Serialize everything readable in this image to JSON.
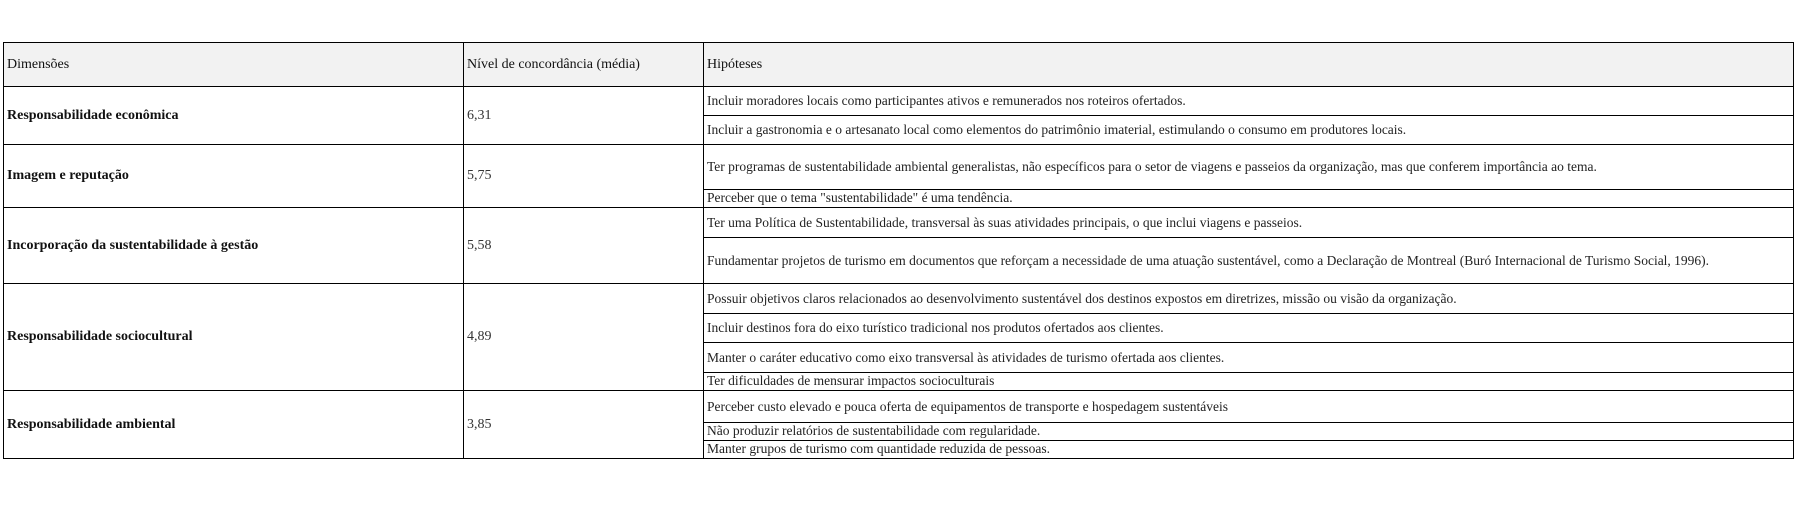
{
  "table": {
    "headers": [
      "Dimensões",
      "Nível de concordância (média)",
      "Hipóteses"
    ],
    "rows": [
      {
        "dimension": "Responsabilidade econômica",
        "mean": "6,31",
        "hypotheses": [
          "Incluir moradores locais como participantes ativos e remunerados nos roteiros ofertados.",
          "Incluir a gastronomia e o artesanato local como elementos do patrimônio imaterial, estimulando o consumo em produtores locais."
        ]
      },
      {
        "dimension": "Imagem e reputação",
        "mean": "5,75",
        "hypotheses": [
          "Ter programas de sustentabilidade ambiental generalistas, não específicos para o setor de viagens e passeios da organização, mas que conferem importância ao tema.",
          "Perceber que o tema \"sustentabilidade\" é uma tendência."
        ]
      },
      {
        "dimension": "Incorporação da sustentabilidade à gestão",
        "mean": "5,58",
        "hypotheses": [
          "Ter uma Política de Sustentabilidade, transversal às suas atividades principais, o que inclui viagens e passeios.",
          "Fundamentar projetos de turismo em documentos que reforçam a necessidade de uma atuação sustentável, como a Declaração de Montreal (Buró Internacional de Turismo Social, 1996)."
        ]
      },
      {
        "dimension": "Responsabilidade sociocultural",
        "mean": "4,89",
        "hypotheses": [
          "Possuir objetivos claros relacionados ao desenvolvimento sustentável dos destinos expostos em diretrizes, missão ou visão da organização.",
          "Incluir destinos fora do eixo turístico tradicional nos produtos ofertados aos clientes.",
          "Manter o caráter educativo como eixo transversal às atividades de turismo ofertada aos clientes.",
          "Ter dificuldades de mensurar impactos socioculturais"
        ]
      },
      {
        "dimension": "Responsabilidade ambiental",
        "mean": "3,85",
        "hypotheses": [
          "Perceber custo elevado e pouca oferta de equipamentos de transporte e hospedagem sustentáveis",
          "Não produzir relatórios de sustentabilidade com regularidade.",
          "Manter grupos de turismo com quantidade reduzida de pessoas."
        ]
      }
    ]
  }
}
